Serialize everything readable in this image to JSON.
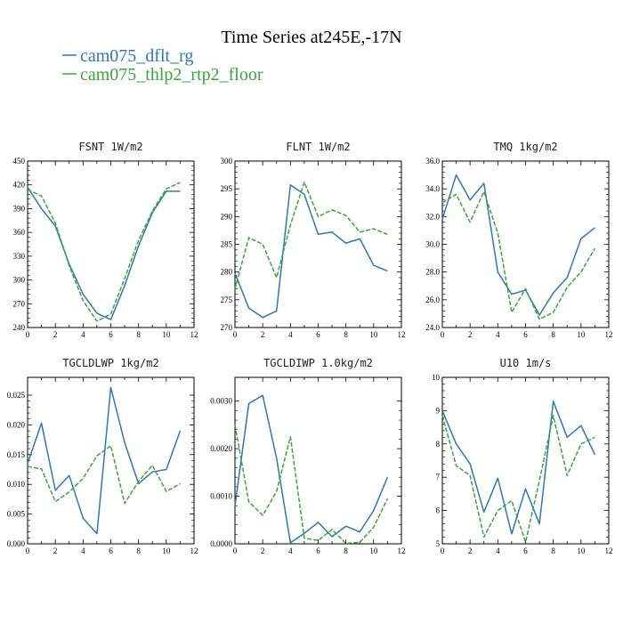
{
  "figure": {
    "title": "Time Series at245E,-17N"
  },
  "legend": [
    {
      "name": "cam075_dflt_rg",
      "color": "#2a7ab0",
      "dash": "solid"
    },
    {
      "name": "cam075_thlp2_rtp2_floor",
      "color": "#3aa53a",
      "dash": "dashed"
    }
  ],
  "chart_data": [
    {
      "type": "line",
      "title": "FSNT  1W/m2",
      "xlim": [
        0,
        12
      ],
      "xticks": [
        0,
        2,
        4,
        6,
        8,
        10,
        12
      ],
      "ylim": [
        240,
        450
      ],
      "yticks": [
        240,
        270,
        300,
        330,
        360,
        390,
        420,
        450
      ],
      "ytick_labels": [
        "240",
        "270",
        "300",
        "330",
        "360",
        "390",
        "420",
        "450"
      ],
      "x": [
        0,
        1,
        2,
        3,
        4,
        5,
        6,
        7,
        8,
        9,
        10,
        11
      ],
      "series": [
        {
          "name": "cam075_dflt_rg",
          "values": [
            417,
            390,
            368,
            320,
            282,
            258,
            250,
            293,
            343,
            385,
            412,
            412
          ]
        },
        {
          "name": "cam075_thlp2_rtp2_floor",
          "values": [
            414,
            406,
            372,
            318,
            274,
            248,
            257,
            302,
            350,
            387,
            415,
            423
          ]
        }
      ]
    },
    {
      "type": "line",
      "title": "FLNT  1W/m2",
      "xlim": [
        0,
        12
      ],
      "xticks": [
        0,
        2,
        4,
        6,
        8,
        10,
        12
      ],
      "ylim": [
        270,
        300
      ],
      "yticks": [
        270,
        275,
        280,
        285,
        290,
        295,
        300
      ],
      "ytick_labels": [
        "270",
        "275",
        "280",
        "285",
        "290",
        "295",
        "300"
      ],
      "x": [
        0,
        1,
        2,
        3,
        4,
        5,
        6,
        7,
        8,
        9,
        10,
        11
      ],
      "series": [
        {
          "name": "cam075_dflt_rg",
          "values": [
            279.8,
            273.5,
            271.8,
            273.0,
            295.7,
            294.0,
            286.8,
            287.2,
            285.2,
            286.0,
            281.2,
            280.2
          ]
        },
        {
          "name": "cam075_thlp2_rtp2_floor",
          "values": [
            277.0,
            286.2,
            285.0,
            279.0,
            288.5,
            296.2,
            290.0,
            291.2,
            290.2,
            287.2,
            287.8,
            286.8
          ]
        }
      ]
    },
    {
      "type": "line",
      "title": "TMQ  1kg/m2",
      "xlim": [
        0,
        12
      ],
      "xticks": [
        0,
        2,
        4,
        6,
        8,
        10,
        12
      ],
      "ylim": [
        24,
        36
      ],
      "yticks": [
        24,
        26,
        28,
        30,
        32,
        34,
        36
      ],
      "ytick_labels": [
        "24.0",
        "26.0",
        "28.0",
        "30.0",
        "32.0",
        "34.0",
        "36.0"
      ],
      "x": [
        0,
        1,
        2,
        3,
        4,
        5,
        6,
        7,
        8,
        9,
        10,
        11
      ],
      "series": [
        {
          "name": "cam075_dflt_rg",
          "values": [
            31.8,
            35.0,
            33.2,
            34.4,
            28.0,
            26.4,
            26.7,
            24.9,
            26.5,
            27.6,
            30.4,
            31.2
          ]
        },
        {
          "name": "cam075_thlp2_rtp2_floor",
          "values": [
            33.0,
            33.6,
            31.6,
            33.8,
            30.8,
            25.1,
            26.8,
            24.6,
            25.1,
            26.9,
            28.0,
            29.7
          ]
        }
      ]
    },
    {
      "type": "line",
      "title": "TGCLDLWP  1kg/m2",
      "xlim": [
        0,
        12
      ],
      "xticks": [
        0,
        2,
        4,
        6,
        8,
        10,
        12
      ],
      "ylim": [
        0,
        0.028
      ],
      "yticks": [
        0,
        0.005,
        0.01,
        0.015,
        0.02,
        0.025
      ],
      "ytick_labels": [
        "0.000",
        "0.005",
        "0.010",
        "0.015",
        "0.020",
        "0.025"
      ],
      "x": [
        0,
        1,
        2,
        3,
        4,
        5,
        6,
        7,
        8,
        9,
        10,
        11
      ],
      "series": [
        {
          "name": "cam075_dflt_rg",
          "values": [
            0.0135,
            0.0203,
            0.009,
            0.0115,
            0.0043,
            0.0017,
            0.0263,
            0.017,
            0.0101,
            0.0121,
            0.0125,
            0.019
          ]
        },
        {
          "name": "cam075_thlp2_rtp2_floor",
          "values": [
            0.013,
            0.0126,
            0.0071,
            0.0087,
            0.011,
            0.0148,
            0.0165,
            0.0068,
            0.0105,
            0.0132,
            0.0088,
            0.0101
          ]
        }
      ]
    },
    {
      "type": "line",
      "title": "TGCLDIWP  1.0kg/m2",
      "xlim": [
        0,
        12
      ],
      "xticks": [
        0,
        2,
        4,
        6,
        8,
        10,
        12
      ],
      "ylim": [
        0,
        0.0035
      ],
      "yticks": [
        0,
        0.001,
        0.002,
        0.003
      ],
      "ytick_labels": [
        "0.0000",
        "0.0010",
        "0.0020",
        "0.0030"
      ],
      "x": [
        0,
        1,
        2,
        3,
        4,
        5,
        6,
        7,
        8,
        9,
        10,
        11
      ],
      "series": [
        {
          "name": "cam075_dflt_rg",
          "values": [
            0.0008,
            0.00295,
            0.00312,
            0.0018,
            2e-05,
            0.00022,
            0.00045,
            0.00015,
            0.00037,
            0.00025,
            0.0007,
            0.0014
          ]
        },
        {
          "name": "cam075_thlp2_rtp2_floor",
          "values": [
            0.0025,
            0.00088,
            0.0006,
            0.0011,
            0.00225,
            0.00012,
            7e-05,
            0.0003,
            1e-05,
            3e-05,
            0.00035,
            0.00095
          ]
        }
      ]
    },
    {
      "type": "line",
      "title": "U10  1m/s",
      "xlim": [
        0,
        12
      ],
      "xticks": [
        0,
        2,
        4,
        6,
        8,
        10,
        12
      ],
      "ylim": [
        5,
        10
      ],
      "yticks": [
        5,
        6,
        7,
        8,
        9,
        10
      ],
      "ytick_labels": [
        "5",
        "6",
        "7",
        "8",
        "9",
        "10"
      ],
      "x": [
        0,
        1,
        2,
        3,
        4,
        5,
        6,
        7,
        8,
        9,
        10,
        11
      ],
      "series": [
        {
          "name": "cam075_dflt_rg",
          "values": [
            9.0,
            8.0,
            7.4,
            5.95,
            6.97,
            5.3,
            6.65,
            5.6,
            9.28,
            8.2,
            8.55,
            7.68
          ]
        },
        {
          "name": "cam075_thlp2_rtp2_floor",
          "values": [
            8.85,
            7.35,
            7.05,
            5.2,
            6.0,
            6.3,
            5.05,
            6.9,
            8.85,
            7.05,
            8.0,
            8.2
          ]
        }
      ]
    }
  ]
}
